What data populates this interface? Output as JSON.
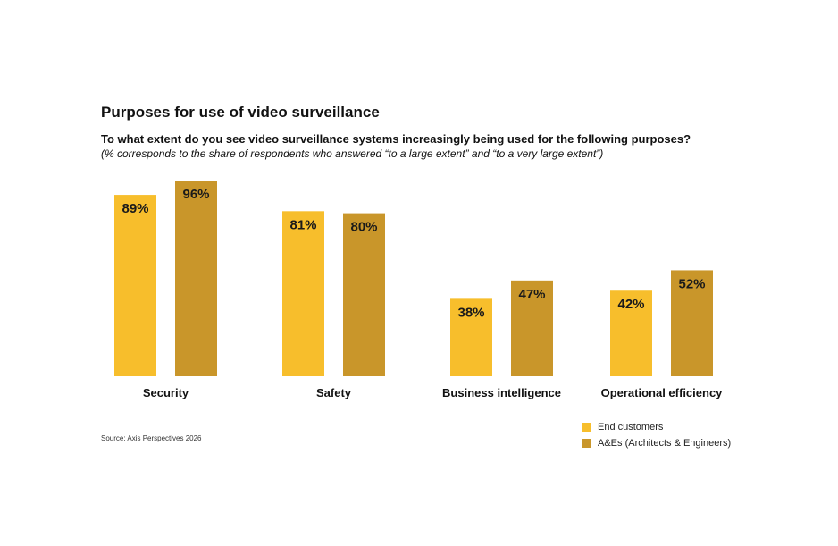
{
  "colors": {
    "end_customers": "#F7BE2C",
    "aes": "#C9962A"
  },
  "chart_data": {
    "type": "bar",
    "title": "Purposes for use of video surveillance",
    "subtitle": "To what extent do you see video surveillance systems increasingly being used for the following purposes?",
    "note": "(% corresponds to the share of respondents who answered “to a large extent” and “to a very large extent”)",
    "categories": [
      "Security",
      "Safety",
      "Business intelligence",
      "Operational efficiency"
    ],
    "series": [
      {
        "name": "End customers",
        "values": [
          89,
          81,
          38,
          42
        ],
        "labels": [
          "89%",
          "81%",
          "38%",
          "42%"
        ]
      },
      {
        "name": "A&Es (Architects & Engineers)",
        "values": [
          96,
          80,
          47,
          52
        ],
        "labels": [
          "96%",
          "80%",
          "47%",
          "52%"
        ]
      }
    ],
    "ylim": [
      0,
      100
    ],
    "xlabel": "",
    "ylabel": "",
    "grid": false,
    "legend": "bottom-right",
    "source": "Source: Axis Perspectives 2026"
  }
}
